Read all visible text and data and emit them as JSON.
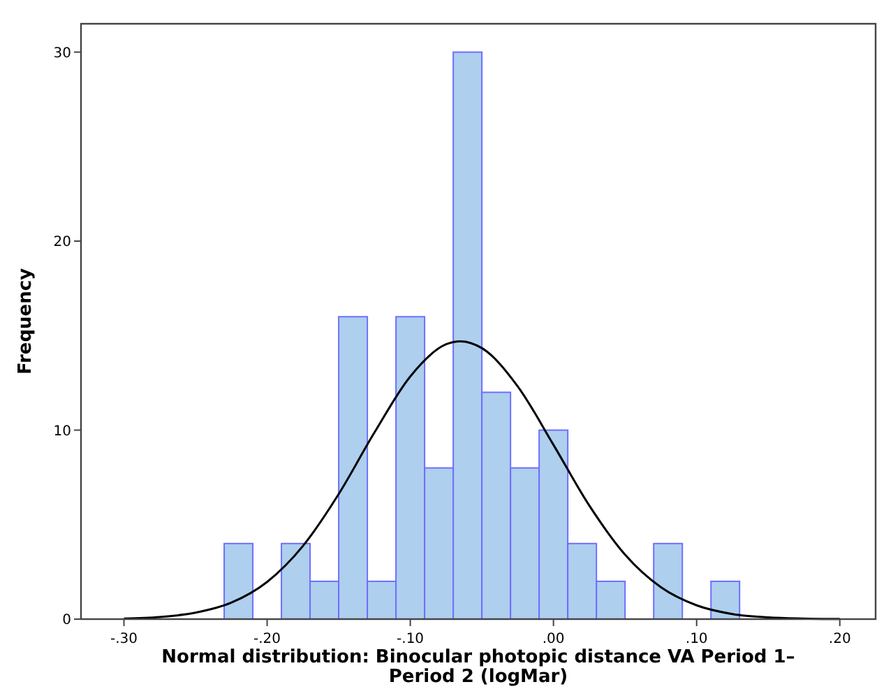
{
  "chart_data": {
    "type": "histogram",
    "xlabel": "Normal distribution: Binocular photopic distance VA Period 1–Period 2 (logMar)",
    "ylabel": "Frequency",
    "bins": [
      -0.23,
      -0.21,
      -0.19,
      -0.17,
      -0.15,
      -0.13,
      -0.11,
      -0.09,
      -0.07,
      -0.05,
      -0.03,
      -0.01,
      0.01,
      0.03,
      0.05,
      0.07,
      0.09,
      0.11,
      0.13
    ],
    "series": [
      {
        "color": "#aecfee",
        "values": [
          4,
          0,
          4,
          2,
          16,
          2,
          16,
          8,
          30,
          12,
          8,
          10,
          4,
          2,
          0,
          4,
          0,
          2
        ]
      },
      {
        "type": "line",
        "color": "#000000",
        "x": [
          -0.3,
          -0.275,
          -0.25,
          -0.225,
          -0.2,
          -0.175,
          -0.15,
          -0.125,
          -0.1,
          -0.075,
          -0.065,
          -0.05,
          -0.025,
          0,
          0.025,
          0.05,
          0.075,
          0.1,
          0.125,
          0.15,
          0.175,
          0.2
        ],
        "values": [
          0.03,
          0.11,
          0.34,
          0.87,
          1.97,
          3.87,
          6.62,
          9.88,
          12.84,
          14.54,
          14.7,
          14.34,
          12.32,
          9.22,
          6.01,
          3.41,
          1.69,
          0.73,
          0.27,
          0.09,
          0.03,
          0.01
        ]
      }
    ],
    "xlim": [
      -0.33,
      0.225
    ],
    "ylim": [
      0,
      31.5
    ],
    "xticks": [
      {
        "value": -0.3,
        "label": "-.30"
      },
      {
        "value": -0.2,
        "label": "-.20"
      },
      {
        "value": -0.1,
        "label": "-.10"
      },
      {
        "value": 0,
        "label": ".00"
      },
      {
        "value": 0.1,
        "label": ".10"
      },
      {
        "value": 0.2,
        "label": ".20"
      }
    ],
    "yticks": [
      0,
      10,
      20,
      30
    ],
    "grid": false,
    "marker": "none",
    "line_style": "solid"
  }
}
